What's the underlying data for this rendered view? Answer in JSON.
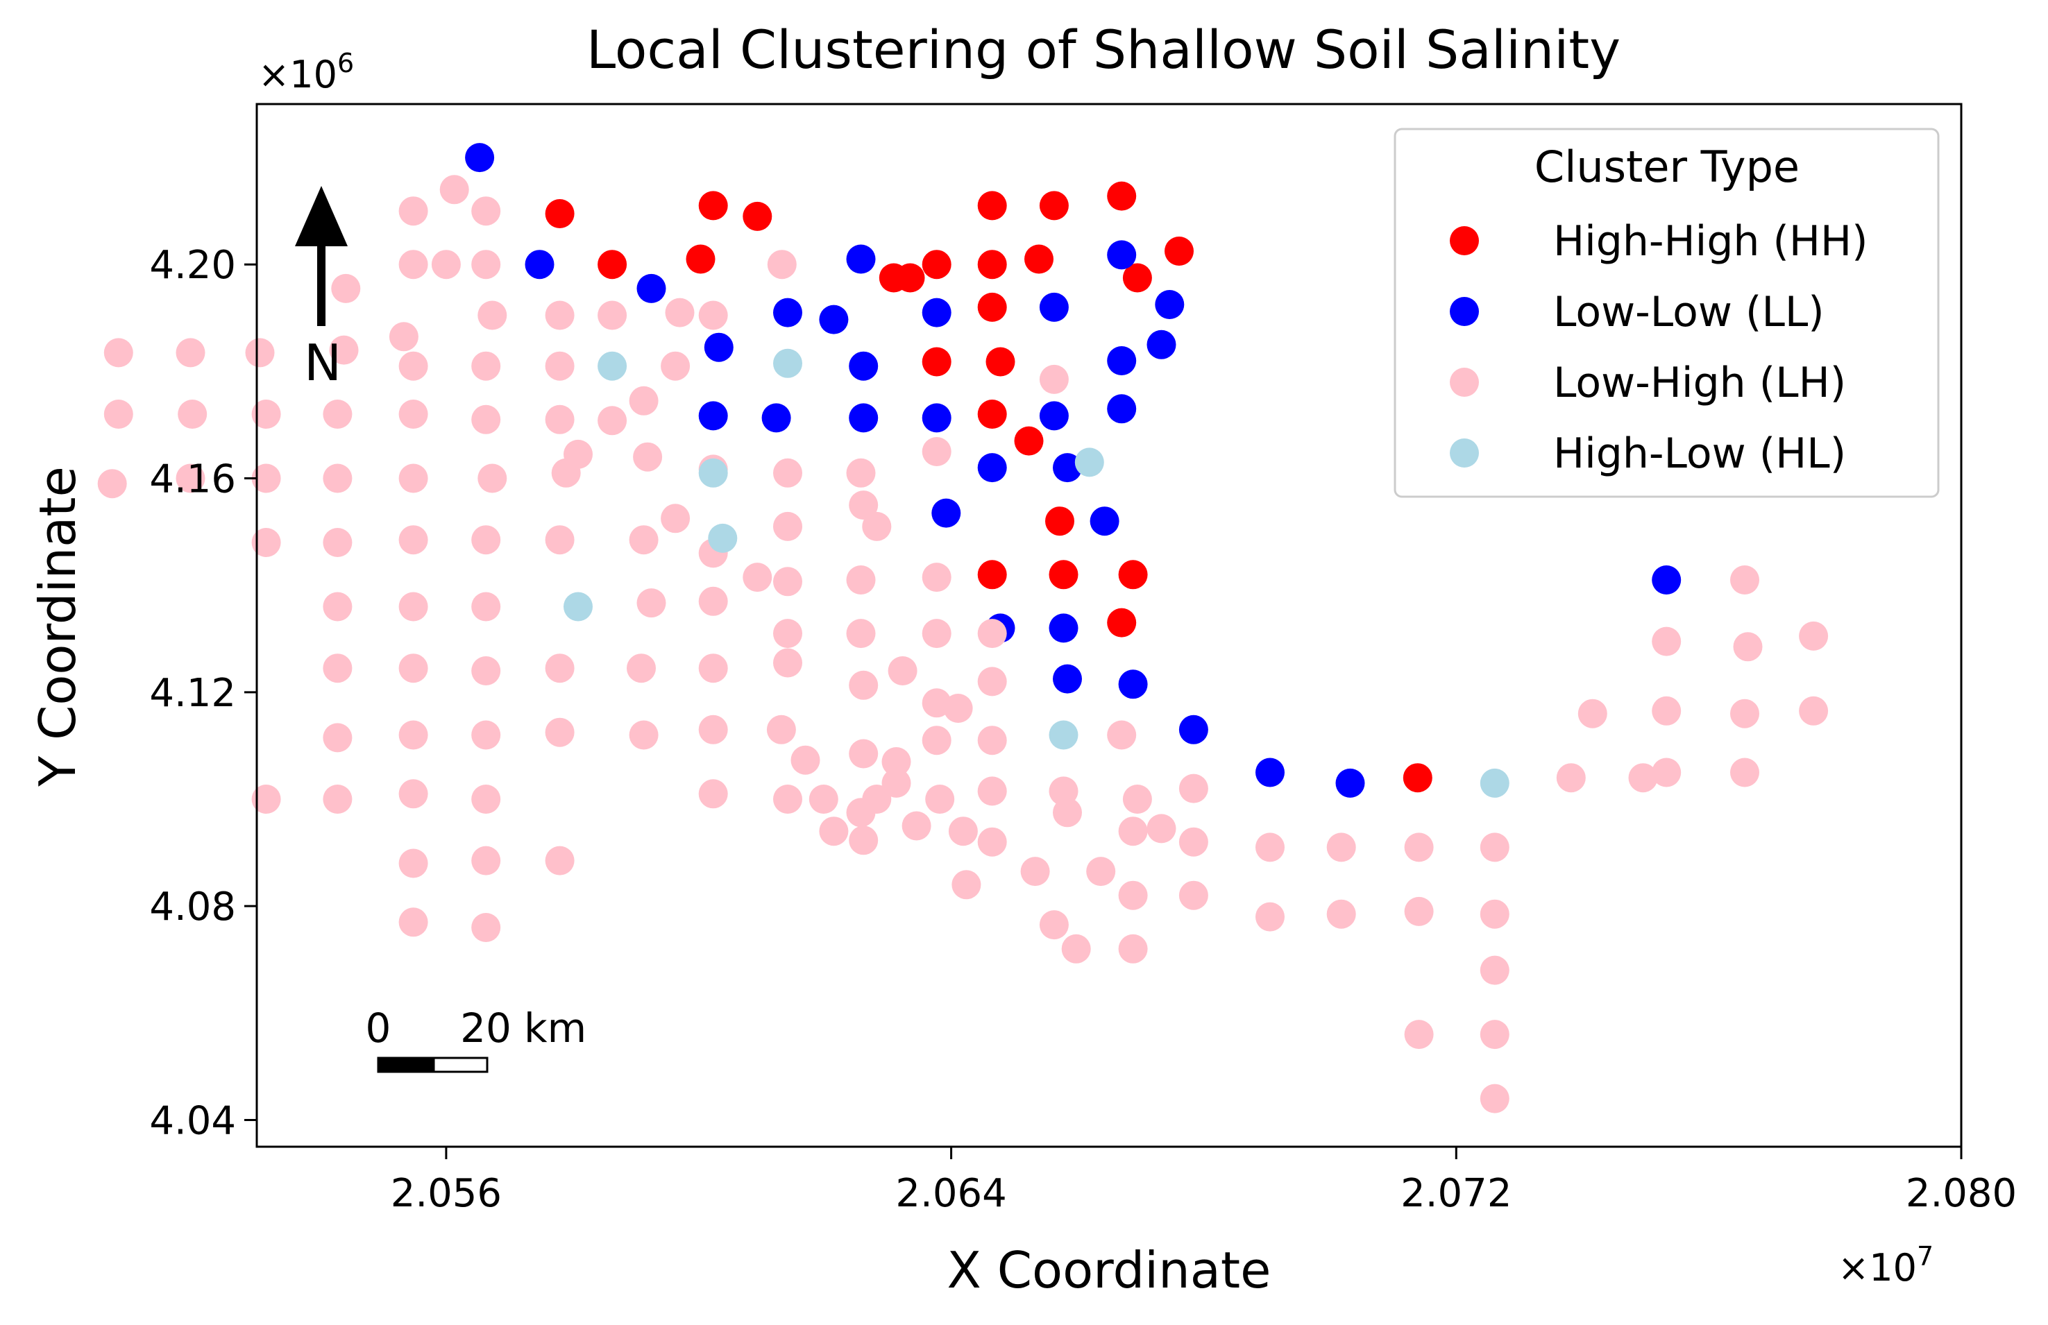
{
  "chart_data": {
    "type": "scatter",
    "title": "Local Clustering of Shallow Soil Salinity",
    "xlabel": "X Coordinate",
    "ylabel": "Y Coordinate",
    "x_multiplier": "×10",
    "x_exponent": "7",
    "y_multiplier": "×10",
    "y_exponent": "6",
    "xlim": [
      20530000,
      20800000
    ],
    "ylim": [
      4035000,
      4230000
    ],
    "xticks": [
      20560000,
      20640000,
      20720000,
      20800000
    ],
    "xtick_labels": [
      "2.056",
      "2.064",
      "2.072",
      "2.080"
    ],
    "yticks": [
      4040000,
      4080000,
      4120000,
      4160000,
      4200000
    ],
    "ytick_labels": [
      "4.04",
      "4.08",
      "4.12",
      "4.16",
      "4.20"
    ],
    "grid": false,
    "legend_title": "Cluster Type",
    "legend_position": "top-right",
    "north_arrow_label": "N",
    "scalebar": {
      "start_label": "0",
      "end_label": "20",
      "unit": "km"
    },
    "series": [
      {
        "name": "High-High (HH)",
        "color": "#ff0000",
        "points": [
          [
            20578000,
            4209500
          ],
          [
            20602300,
            4211000
          ],
          [
            20609300,
            4209000
          ],
          [
            20646500,
            4211000
          ],
          [
            20656300,
            4211000
          ],
          [
            20667000,
            4212800
          ],
          [
            20600300,
            4201000
          ],
          [
            20586300,
            4200000
          ],
          [
            20630900,
            4197500
          ],
          [
            20633500,
            4197500
          ],
          [
            20637700,
            4200000
          ],
          [
            20646500,
            4200000
          ],
          [
            20653900,
            4201000
          ],
          [
            20669500,
            4197500
          ],
          [
            20676100,
            4202500
          ],
          [
            20646500,
            4192000
          ],
          [
            20637700,
            4181800
          ],
          [
            20647800,
            4181800
          ],
          [
            20646500,
            4172000
          ],
          [
            20652300,
            4167000
          ],
          [
            20657200,
            4152000
          ],
          [
            20646500,
            4142000
          ],
          [
            20657800,
            4142000
          ],
          [
            20668800,
            4142000
          ],
          [
            20667000,
            4133000
          ],
          [
            20713900,
            4104000
          ]
        ]
      },
      {
        "name": "Low-Low (LL)",
        "color": "#0000ff",
        "points": [
          [
            20565300,
            4220000
          ],
          [
            20574800,
            4200000
          ],
          [
            20592500,
            4195500
          ],
          [
            20625700,
            4201000
          ],
          [
            20667000,
            4201800
          ],
          [
            20614100,
            4191000
          ],
          [
            20621400,
            4189700
          ],
          [
            20637700,
            4191000
          ],
          [
            20656300,
            4192000
          ],
          [
            20674600,
            4192500
          ],
          [
            20603200,
            4184500
          ],
          [
            20626100,
            4181000
          ],
          [
            20667000,
            4182000
          ],
          [
            20673300,
            4185000
          ],
          [
            20602300,
            4171700
          ],
          [
            20612300,
            4171300
          ],
          [
            20626100,
            4171300
          ],
          [
            20637700,
            4171300
          ],
          [
            20656300,
            4171700
          ],
          [
            20667000,
            4173000
          ],
          [
            20646500,
            4162000
          ],
          [
            20658400,
            4162000
          ],
          [
            20639200,
            4153500
          ],
          [
            20664300,
            4152000
          ],
          [
            20647800,
            4132000
          ],
          [
            20657800,
            4132000
          ],
          [
            20658400,
            4122500
          ],
          [
            20668800,
            4121500
          ],
          [
            20678400,
            4113000
          ],
          [
            20690500,
            4105000
          ],
          [
            20703200,
            4103000
          ],
          [
            20753300,
            4141000
          ]
        ]
      },
      {
        "name": "Low-High (LH)",
        "color": "#ffc0cb",
        "points": [
          [
            20554800,
            4210000
          ],
          [
            20561300,
            4214000
          ],
          [
            20566300,
            4210000
          ],
          [
            20554800,
            4200000
          ],
          [
            20560000,
            4200000
          ],
          [
            20566300,
            4200000
          ],
          [
            20613200,
            4200000
          ],
          [
            20544100,
            4195500
          ],
          [
            20567300,
            4190500
          ],
          [
            20578000,
            4190500
          ],
          [
            20586300,
            4190500
          ],
          [
            20597000,
            4191000
          ],
          [
            20602300,
            4190500
          ],
          [
            20553300,
            4186500
          ],
          [
            20508100,
            4183500
          ],
          [
            20519500,
            4183500
          ],
          [
            20530500,
            4183500
          ],
          [
            20543800,
            4184000
          ],
          [
            20554800,
            4181000
          ],
          [
            20566300,
            4181000
          ],
          [
            20578000,
            4181000
          ],
          [
            20596300,
            4181000
          ],
          [
            20591300,
            4174500
          ],
          [
            20656300,
            4178500
          ],
          [
            20508100,
            4172000
          ],
          [
            20519800,
            4172000
          ],
          [
            20531500,
            4172000
          ],
          [
            20542800,
            4172000
          ],
          [
            20554800,
            4172000
          ],
          [
            20566300,
            4171000
          ],
          [
            20578000,
            4171000
          ],
          [
            20586300,
            4170800
          ],
          [
            20580900,
            4164500
          ],
          [
            20591900,
            4164000
          ],
          [
            20637700,
            4165000
          ],
          [
            20507100,
            4159000
          ],
          [
            20519500,
            4160000
          ],
          [
            20531500,
            4160000
          ],
          [
            20542800,
            4160000
          ],
          [
            20554800,
            4160000
          ],
          [
            20567300,
            4160000
          ],
          [
            20579000,
            4161000
          ],
          [
            20602300,
            4161700
          ],
          [
            20614100,
            4161000
          ],
          [
            20625700,
            4161000
          ],
          [
            20626100,
            4155000
          ],
          [
            20628200,
            4151000
          ],
          [
            20614100,
            4151000
          ],
          [
            20596300,
            4152500
          ],
          [
            20531500,
            4148000
          ],
          [
            20542800,
            4148000
          ],
          [
            20554800,
            4148500
          ],
          [
            20566300,
            4148500
          ],
          [
            20578000,
            4148500
          ],
          [
            20591300,
            4148500
          ],
          [
            20602300,
            4146000
          ],
          [
            20609300,
            4141500
          ],
          [
            20614100,
            4140700
          ],
          [
            20625700,
            4141000
          ],
          [
            20637700,
            4141500
          ],
          [
            20542800,
            4136000
          ],
          [
            20554800,
            4136000
          ],
          [
            20566300,
            4136000
          ],
          [
            20592500,
            4136700
          ],
          [
            20602300,
            4137000
          ],
          [
            20614100,
            4131000
          ],
          [
            20625700,
            4131000
          ],
          [
            20637700,
            4131000
          ],
          [
            20646500,
            4131000
          ],
          [
            20542800,
            4124500
          ],
          [
            20554800,
            4124500
          ],
          [
            20566300,
            4124000
          ],
          [
            20578000,
            4124500
          ],
          [
            20590900,
            4124500
          ],
          [
            20602300,
            4124500
          ],
          [
            20614100,
            4125500
          ],
          [
            20626100,
            4121300
          ],
          [
            20632300,
            4124000
          ],
          [
            20646500,
            4122000
          ],
          [
            20637700,
            4118000
          ],
          [
            20641100,
            4117000
          ],
          [
            20542800,
            4111500
          ],
          [
            20554800,
            4112000
          ],
          [
            20566300,
            4112000
          ],
          [
            20578000,
            4112500
          ],
          [
            20591300,
            4112000
          ],
          [
            20602300,
            4113000
          ],
          [
            20613100,
            4113000
          ],
          [
            20616900,
            4107300
          ],
          [
            20626100,
            4108500
          ],
          [
            20631300,
            4107000
          ],
          [
            20637700,
            4111000
          ],
          [
            20646500,
            4111000
          ],
          [
            20667000,
            4112000
          ],
          [
            20531500,
            4100000
          ],
          [
            20542800,
            4100000
          ],
          [
            20554800,
            4101000
          ],
          [
            20566300,
            4100000
          ],
          [
            20602300,
            4101000
          ],
          [
            20614100,
            4100000
          ],
          [
            20619800,
            4100000
          ],
          [
            20628200,
            4100000
          ],
          [
            20631300,
            4103000
          ],
          [
            20638200,
            4100000
          ],
          [
            20646500,
            4101500
          ],
          [
            20657800,
            4101500
          ],
          [
            20669500,
            4100000
          ],
          [
            20678400,
            4102000
          ],
          [
            20625700,
            4097500
          ],
          [
            20621400,
            4094000
          ],
          [
            20626100,
            4092300
          ],
          [
            20634500,
            4095000
          ],
          [
            20641900,
            4094000
          ],
          [
            20646500,
            4092000
          ],
          [
            20658400,
            4097500
          ],
          [
            20668800,
            4094000
          ],
          [
            20673300,
            4094500
          ],
          [
            20678400,
            4092000
          ],
          [
            20690500,
            4091000
          ],
          [
            20701800,
            4091000
          ],
          [
            20714100,
            4091000
          ],
          [
            20726100,
            4091000
          ],
          [
            20554800,
            4088000
          ],
          [
            20566300,
            4088500
          ],
          [
            20578000,
            4088500
          ],
          [
            20642400,
            4084000
          ],
          [
            20653300,
            4086500
          ],
          [
            20663700,
            4086500
          ],
          [
            20668800,
            4082000
          ],
          [
            20678400,
            4082000
          ],
          [
            20690500,
            4078000
          ],
          [
            20701800,
            4078500
          ],
          [
            20714100,
            4079000
          ],
          [
            20726100,
            4078500
          ],
          [
            20554800,
            4077000
          ],
          [
            20566300,
            4076000
          ],
          [
            20656300,
            4076500
          ],
          [
            20659800,
            4072000
          ],
          [
            20668800,
            4072000
          ],
          [
            20726100,
            4068000
          ],
          [
            20714100,
            4056000
          ],
          [
            20726100,
            4056000
          ],
          [
            20726100,
            4044000
          ],
          [
            20738200,
            4104000
          ],
          [
            20749600,
            4104000
          ],
          [
            20753300,
            4105000
          ],
          [
            20765700,
            4105000
          ],
          [
            20741600,
            4116000
          ],
          [
            20753300,
            4116500
          ],
          [
            20765700,
            4116000
          ],
          [
            20776600,
            4116500
          ],
          [
            20766200,
            4128500
          ],
          [
            20776600,
            4130500
          ],
          [
            20753300,
            4129500
          ],
          [
            20765700,
            4141000
          ]
        ]
      },
      {
        "name": "High-Low (HL)",
        "color": "#add8e6",
        "points": [
          [
            20586300,
            4181000
          ],
          [
            20614100,
            4181500
          ],
          [
            20602300,
            4161000
          ],
          [
            20661900,
            4163000
          ],
          [
            20603800,
            4148800
          ],
          [
            20580900,
            4136000
          ],
          [
            20657800,
            4112000
          ],
          [
            20726100,
            4103000
          ]
        ]
      }
    ]
  }
}
